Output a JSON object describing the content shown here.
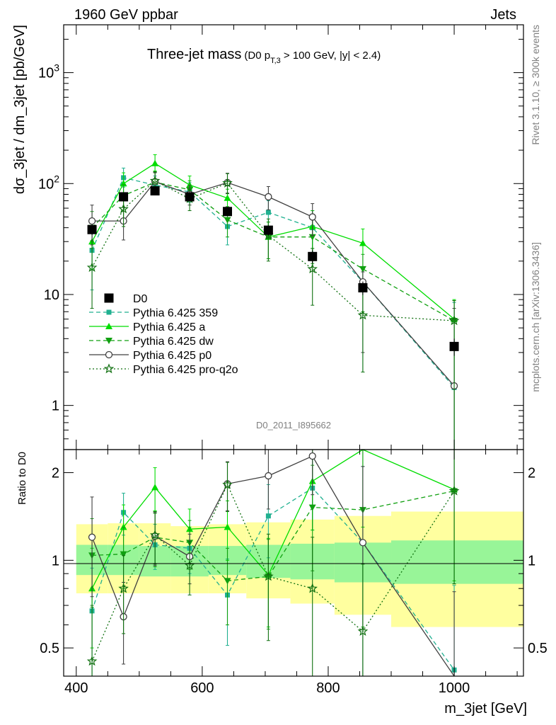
{
  "header": {
    "left": "1960 GeV ppbar",
    "right": "Jets"
  },
  "side_labels": {
    "rivet": "Rivet 3.1.10, ≥ 300k events",
    "mcplots": "mcplots.cern.ch [arXiv:1306.3436]"
  },
  "watermark": "D0_2011_I895662",
  "chart_data": [
    {
      "type": "scatter",
      "panel": "main",
      "title": "Three-jet mass",
      "title_cut": {
        "pre": "(D0 p",
        "sub": "T,3",
        "post": " > 100 GeV, |y| < 2.4)"
      },
      "ylabel": "dσ_3jet / dm_3jet [pb/GeV]",
      "yscale": "log",
      "ylim": [
        0.4,
        2700
      ],
      "xlim": [
        380,
        1110
      ],
      "yticks": [
        {
          "value": 1,
          "label": "1"
        },
        {
          "value": 10,
          "label": "10"
        },
        {
          "value": 100,
          "label": "10",
          "sup": "2"
        },
        {
          "value": 1000,
          "label": "10",
          "sup": "3"
        }
      ],
      "x": [
        425,
        475,
        525,
        580,
        640,
        705,
        775,
        855,
        1000
      ],
      "series": [
        {
          "name": "D0",
          "color": "#000000",
          "marker": "square",
          "line": "none",
          "values": [
            38.5,
            76,
            86,
            76,
            56,
            38,
            22,
            11.5,
            3.4
          ],
          "yerr_lo": [
            4,
            6,
            7,
            6,
            5,
            4,
            3,
            1.6,
            0.6
          ],
          "yerr_hi": [
            4,
            6,
            7,
            6,
            5,
            4,
            3,
            1.6,
            0.6
          ]
        },
        {
          "name": "Pythia 6.425 359",
          "color": "#20b090",
          "marker": "square-small",
          "line": "dashed",
          "values": [
            25,
            113,
            97,
            84,
            41,
            55,
            40,
            13,
            1.45
          ],
          "yerr_lo": [
            14,
            20,
            18,
            16,
            13,
            15,
            16,
            11,
            1.45
          ],
          "yerr_hi": [
            16,
            25,
            20,
            18,
            14,
            15,
            17,
            3,
            7
          ]
        },
        {
          "name": "Pythia 6.425 a",
          "color": "#00dd00",
          "marker": "triangle-up",
          "line": "solid",
          "values": [
            30,
            100,
            152,
            97,
            74,
            33,
            41,
            29,
            6
          ],
          "yerr_lo": [
            13,
            20,
            22,
            18,
            15,
            12,
            15,
            16,
            6
          ],
          "yerr_hi": [
            15,
            25,
            30,
            20,
            15,
            12,
            16,
            10,
            3
          ]
        },
        {
          "name": "Pythia 6.425 dw",
          "color": "#10a010",
          "marker": "triangle-down",
          "line": "dashed",
          "values": [
            40,
            78,
            103,
            88,
            47,
            33,
            33,
            17,
            5.8
          ],
          "yerr_lo": [
            14,
            20,
            20,
            18,
            14,
            12,
            14,
            10,
            5.8
          ],
          "yerr_hi": [
            16,
            20,
            22,
            18,
            15,
            12,
            15,
            6,
            3
          ]
        },
        {
          "name": "Pythia 6.425 p0",
          "color": "#404040",
          "marker": "circle-open",
          "line": "solid",
          "values": [
            46,
            46,
            104,
            80,
            102,
            76,
            50,
            13,
            1.5
          ],
          "yerr_lo": [
            18,
            15,
            20,
            16,
            20,
            18,
            16,
            10,
            1.5
          ],
          "yerr_hi": [
            18,
            15,
            22,
            16,
            22,
            18,
            16,
            3,
            6
          ]
        },
        {
          "name": "Pythia 6.425 pro-q2o",
          "color": "#107010",
          "marker": "star",
          "line": "dotted",
          "values": [
            17.5,
            59,
            106,
            73,
            101,
            34,
            17,
            6.5,
            5.8
          ],
          "yerr_lo": [
            10,
            18,
            20,
            16,
            20,
            14,
            9,
            4.5,
            5.8
          ],
          "yerr_hi": [
            13,
            20,
            22,
            16,
            22,
            14,
            9,
            5,
            3
          ]
        }
      ],
      "legend_placement": "lower-left"
    },
    {
      "type": "scatter",
      "panel": "ratio",
      "ylabel": "Ratio to D0",
      "xlabel": "m_3jet [GeV]",
      "yscale": "log",
      "ylim": [
        0.4,
        2.4
      ],
      "xlim": [
        380,
        1110
      ],
      "yticks": [
        {
          "value": 0.5,
          "label": "0.5"
        },
        {
          "value": 1,
          "label": "1"
        },
        {
          "value": 2,
          "label": "2"
        }
      ],
      "xticks": [
        {
          "value": 400,
          "label": "400"
        },
        {
          "value": 600,
          "label": "600"
        },
        {
          "value": 800,
          "label": "800"
        },
        {
          "value": 1000,
          "label": "1000"
        }
      ],
      "uncertainty_bands": {
        "bin_edges": [
          400,
          450,
          500,
          550,
          610,
          670,
          740,
          810,
          900,
          1110
        ],
        "inner_lo": [
          0.89,
          0.89,
          0.88,
          0.88,
          0.89,
          0.87,
          0.86,
          0.84,
          0.83
        ],
        "inner_hi": [
          1.13,
          1.13,
          1.12,
          1.12,
          1.12,
          1.13,
          1.14,
          1.15,
          1.17
        ],
        "outer_lo": [
          0.77,
          0.77,
          0.77,
          0.77,
          0.77,
          0.74,
          0.71,
          0.65,
          0.59
        ],
        "outer_hi": [
          1.33,
          1.34,
          1.34,
          1.31,
          1.33,
          1.35,
          1.38,
          1.42,
          1.47
        ],
        "inner_color": "#98f598",
        "outer_color": "#ffff9f"
      },
      "x": [
        425,
        475,
        525,
        580,
        640,
        705,
        775,
        855,
        1000
      ],
      "series": [
        {
          "name": "Pythia 6.425 359",
          "color": "#20b090",
          "marker": "square-small",
          "line": "dashed",
          "values": [
            0.67,
            1.46,
            1.13,
            1.1,
            0.76,
            1.42,
            1.77,
            1.15,
            0.42
          ],
          "yerr": [
            0.27,
            0.24,
            0.2,
            0.2,
            0.25,
            0.4,
            0.5,
            0.95,
            0.4
          ]
        },
        {
          "name": "Pythia 6.425 a",
          "color": "#00dd00",
          "marker": "triangle-up",
          "line": "solid",
          "values": [
            0.8,
            1.3,
            1.78,
            1.28,
            1.3,
            0.89,
            1.87,
            2.5,
            1.75
          ],
          "yerr": [
            0.3,
            0.25,
            0.3,
            0.22,
            0.3,
            0.3,
            0.6,
            1.2,
            0.9
          ]
        },
        {
          "name": "Pythia 6.425 dw",
          "color": "#10a010",
          "marker": "triangle-down",
          "line": "dashed",
          "values": [
            1.04,
            1.05,
            1.2,
            1.15,
            0.85,
            0.88,
            1.52,
            1.49,
            1.73
          ],
          "yerr": [
            0.35,
            0.25,
            0.25,
            0.22,
            0.25,
            0.3,
            0.6,
            0.9,
            0.9
          ]
        },
        {
          "name": "Pythia 6.425 p0",
          "color": "#404040",
          "marker": "circle-open",
          "line": "solid",
          "values": [
            1.2,
            0.64,
            1.21,
            1.03,
            1.83,
            1.95,
            2.28,
            1.15,
            0.39
          ],
          "yerr": [
            0.45,
            0.2,
            0.25,
            0.2,
            0.35,
            0.45,
            0.6,
            0.95,
            0.39
          ]
        },
        {
          "name": "Pythia 6.425 pro-q2o",
          "color": "#107010",
          "marker": "star",
          "line": "dotted",
          "values": [
            0.45,
            0.8,
            1.22,
            0.96,
            1.82,
            0.88,
            0.8,
            0.57,
            1.73
          ],
          "yerr": [
            0.25,
            0.24,
            0.25,
            0.2,
            0.35,
            0.35,
            0.4,
            0.4,
            0.9
          ]
        }
      ]
    }
  ]
}
